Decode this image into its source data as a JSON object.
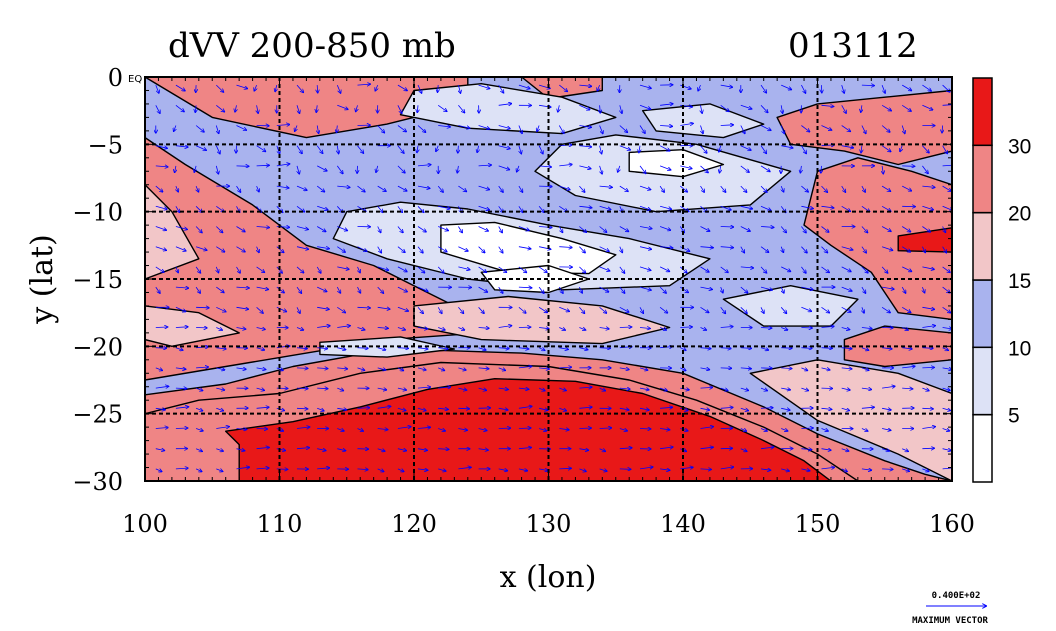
{
  "chart_data": {
    "type": "heatmap",
    "title": "dVV 200-850 mb",
    "date_label": "013112",
    "xlabel": "x (lon)",
    "ylabel": "y (lat)",
    "xlim": [
      100,
      160
    ],
    "ylim": [
      -30,
      0
    ],
    "x_ticks": [
      100,
      110,
      120,
      130,
      140,
      150,
      160
    ],
    "y_ticks": [
      0,
      -5,
      -10,
      -15,
      -20,
      -25,
      -30
    ],
    "y_tick_labels": [
      "0",
      "−5",
      "−10",
      "−15",
      "−20",
      "−25",
      "−30"
    ],
    "equator_label": "EQ",
    "grid": true,
    "contour_levels": [
      5,
      10,
      15,
      20,
      30
    ],
    "colorbar": {
      "labels": [
        "5",
        "10",
        "15",
        "20",
        "30"
      ],
      "bins": [
        "#ffffff",
        "#dde2f6",
        "#a9b3ee",
        "#f2c6c8",
        "#ef8585",
        "#e81818"
      ]
    },
    "regions": [
      {
        "level": 4,
        "points": [
          [
            100,
            -23.6
          ],
          [
            106,
            -22.8
          ],
          [
            111,
            -21.5
          ],
          [
            116,
            -20.6
          ],
          [
            122,
            -20.3
          ],
          [
            128,
            -20.5
          ],
          [
            134,
            -21
          ],
          [
            140,
            -22
          ],
          [
            146,
            -24.5
          ],
          [
            150,
            -26.5
          ],
          [
            155,
            -28.5
          ],
          [
            158,
            -29.5
          ],
          [
            160,
            -30
          ],
          [
            100,
            -30
          ]
        ]
      },
      {
        "level": 4,
        "points": [
          [
            100,
            -4.5
          ],
          [
            103,
            -6.5
          ],
          [
            108,
            -9.5
          ],
          [
            112,
            -12.5
          ],
          [
            117,
            -14
          ],
          [
            121,
            -16
          ],
          [
            125,
            -18
          ],
          [
            125,
            -19
          ],
          [
            118,
            -19.5
          ],
          [
            112,
            -20.5
          ],
          [
            106,
            -21.5
          ],
          [
            100,
            -22.5
          ]
        ]
      },
      {
        "level": 4,
        "points": [
          [
            150,
            -7
          ],
          [
            153,
            -6
          ],
          [
            157,
            -7
          ],
          [
            160,
            -8
          ],
          [
            160,
            -18
          ],
          [
            156,
            -17.5
          ],
          [
            154,
            -14.5
          ],
          [
            151,
            -12.5
          ],
          [
            149,
            -11
          ]
        ]
      },
      {
        "level": 4,
        "points": [
          [
            147,
            -3
          ],
          [
            150,
            -2
          ],
          [
            155,
            -1.5
          ],
          [
            160,
            -1
          ],
          [
            160,
            -5.5
          ],
          [
            156,
            -6.5
          ],
          [
            152,
            -5.5
          ],
          [
            148,
            -5
          ]
        ]
      },
      {
        "level": 4,
        "points": [
          [
            100,
            0
          ],
          [
            124,
            0
          ],
          [
            124,
            -2
          ],
          [
            118,
            -3.5
          ],
          [
            112,
            -4.5
          ],
          [
            105,
            -3
          ]
        ]
      },
      {
        "level": 4,
        "points": [
          [
            128,
            0
          ],
          [
            134,
            0
          ],
          [
            134,
            -1
          ],
          [
            130,
            -1.6
          ]
        ]
      },
      {
        "level": 4,
        "points": [
          [
            104,
            -24
          ],
          [
            110,
            -23.5
          ],
          [
            116,
            -22
          ],
          [
            122,
            -21.2
          ],
          [
            130,
            -21.5
          ],
          [
            136,
            -22.5
          ],
          [
            141,
            -24
          ],
          [
            146,
            -26
          ],
          [
            150,
            -28
          ],
          [
            153,
            -30
          ],
          [
            100,
            -30
          ],
          [
            100,
            -25
          ]
        ]
      },
      {
        "level": 4,
        "points": [
          [
            132,
            -5
          ],
          [
            136,
            -4.8
          ],
          [
            141,
            -5.5
          ],
          [
            144,
            -6.5
          ],
          [
            142,
            -7.5
          ],
          [
            137,
            -7
          ],
          [
            133,
            -6.5
          ]
        ]
      },
      {
        "level": 4,
        "points": [
          [
            152,
            -19.5
          ],
          [
            155,
            -18.5
          ],
          [
            160,
            -19
          ],
          [
            160,
            -21
          ],
          [
            155,
            -21.5
          ],
          [
            152,
            -21
          ]
        ]
      },
      {
        "level": 5,
        "points": [
          [
            106,
            -26.3
          ],
          [
            111,
            -25.6
          ],
          [
            116,
            -24.5
          ],
          [
            121,
            -23.2
          ],
          [
            126,
            -22.4
          ],
          [
            132,
            -22.6
          ],
          [
            137,
            -23.5
          ],
          [
            142,
            -25.2
          ],
          [
            146,
            -27
          ],
          [
            149,
            -28.5
          ],
          [
            151,
            -30
          ],
          [
            107,
            -30
          ],
          [
            107,
            -27.3
          ]
        ]
      },
      {
        "level": 5,
        "points": [
          [
            156,
            -11.8
          ],
          [
            160,
            -11.2
          ],
          [
            160,
            -13
          ],
          [
            156,
            -12.9
          ]
        ]
      },
      {
        "level": 3,
        "points": [
          [
            100,
            -8
          ],
          [
            102,
            -10
          ],
          [
            104,
            -13.5
          ],
          [
            100,
            -15
          ]
        ]
      },
      {
        "level": 3,
        "points": [
          [
            100,
            -17
          ],
          [
            104,
            -17.5
          ],
          [
            107,
            -19
          ],
          [
            102,
            -20
          ],
          [
            100,
            -19.5
          ]
        ]
      },
      {
        "level": 3,
        "points": [
          [
            120,
            -17
          ],
          [
            127,
            -16.3
          ],
          [
            134,
            -17
          ],
          [
            139,
            -18.6
          ],
          [
            134,
            -19.8
          ],
          [
            125,
            -19.5
          ],
          [
            120,
            -18.5
          ]
        ]
      },
      {
        "level": 3,
        "points": [
          [
            145,
            -22
          ],
          [
            150,
            -21
          ],
          [
            156,
            -22
          ],
          [
            160,
            -23.5
          ],
          [
            160,
            -30
          ],
          [
            156,
            -28
          ],
          [
            150,
            -25.5
          ]
        ]
      },
      {
        "level": 1,
        "points": [
          [
            131,
            -5
          ],
          [
            135,
            -4.3
          ],
          [
            141,
            -5
          ],
          [
            148,
            -7
          ],
          [
            145,
            -9.5
          ],
          [
            138,
            -10
          ],
          [
            132,
            -8.8
          ],
          [
            129,
            -7
          ]
        ]
      },
      {
        "level": 1,
        "points": [
          [
            115,
            -10
          ],
          [
            119,
            -9.3
          ],
          [
            124,
            -9.8
          ],
          [
            130,
            -11
          ],
          [
            136,
            -12
          ],
          [
            142,
            -13.5
          ],
          [
            139,
            -15.5
          ],
          [
            131,
            -15.8
          ],
          [
            124,
            -15
          ],
          [
            118,
            -13.5
          ],
          [
            114,
            -12
          ]
        ]
      },
      {
        "level": 1,
        "points": [
          [
            120,
            -1
          ],
          [
            125,
            -0.5
          ],
          [
            131,
            -1.5
          ],
          [
            135,
            -3
          ],
          [
            131,
            -4.2
          ],
          [
            124,
            -3.8
          ],
          [
            119,
            -2.8
          ]
        ]
      },
      {
        "level": 1,
        "points": [
          [
            137,
            -2.5
          ],
          [
            142,
            -2
          ],
          [
            146,
            -3.5
          ],
          [
            143,
            -4.5
          ],
          [
            138,
            -4
          ]
        ]
      },
      {
        "level": 1,
        "points": [
          [
            143,
            -16.5
          ],
          [
            148,
            -15.5
          ],
          [
            153,
            -16.5
          ],
          [
            151,
            -18.5
          ],
          [
            146,
            -18.5
          ]
        ]
      },
      {
        "level": 1,
        "points": [
          [
            113,
            -19.7
          ],
          [
            119,
            -19.3
          ],
          [
            123,
            -20.2
          ],
          [
            118,
            -20.8
          ],
          [
            113,
            -20.6
          ]
        ]
      },
      {
        "level": 0,
        "points": [
          [
            122,
            -11
          ],
          [
            126,
            -10.8
          ],
          [
            131,
            -12
          ],
          [
            135,
            -13.2
          ],
          [
            133,
            -14.6
          ],
          [
            127,
            -14.5
          ],
          [
            122,
            -13
          ]
        ]
      },
      {
        "level": 0,
        "points": [
          [
            136,
            -5.6
          ],
          [
            140,
            -5.4
          ],
          [
            143,
            -6.5
          ],
          [
            140,
            -7.4
          ],
          [
            136,
            -7
          ]
        ]
      },
      {
        "level": 0,
        "points": [
          [
            125,
            -14.5
          ],
          [
            130,
            -14
          ],
          [
            133,
            -15
          ],
          [
            130,
            -16
          ],
          [
            126,
            -15.8
          ]
        ]
      }
    ],
    "vector_field": {
      "max_vector": "0.400E+02",
      "max_vector_label": "MAXIMUM VECTOR",
      "color": "#0000ff"
    }
  }
}
